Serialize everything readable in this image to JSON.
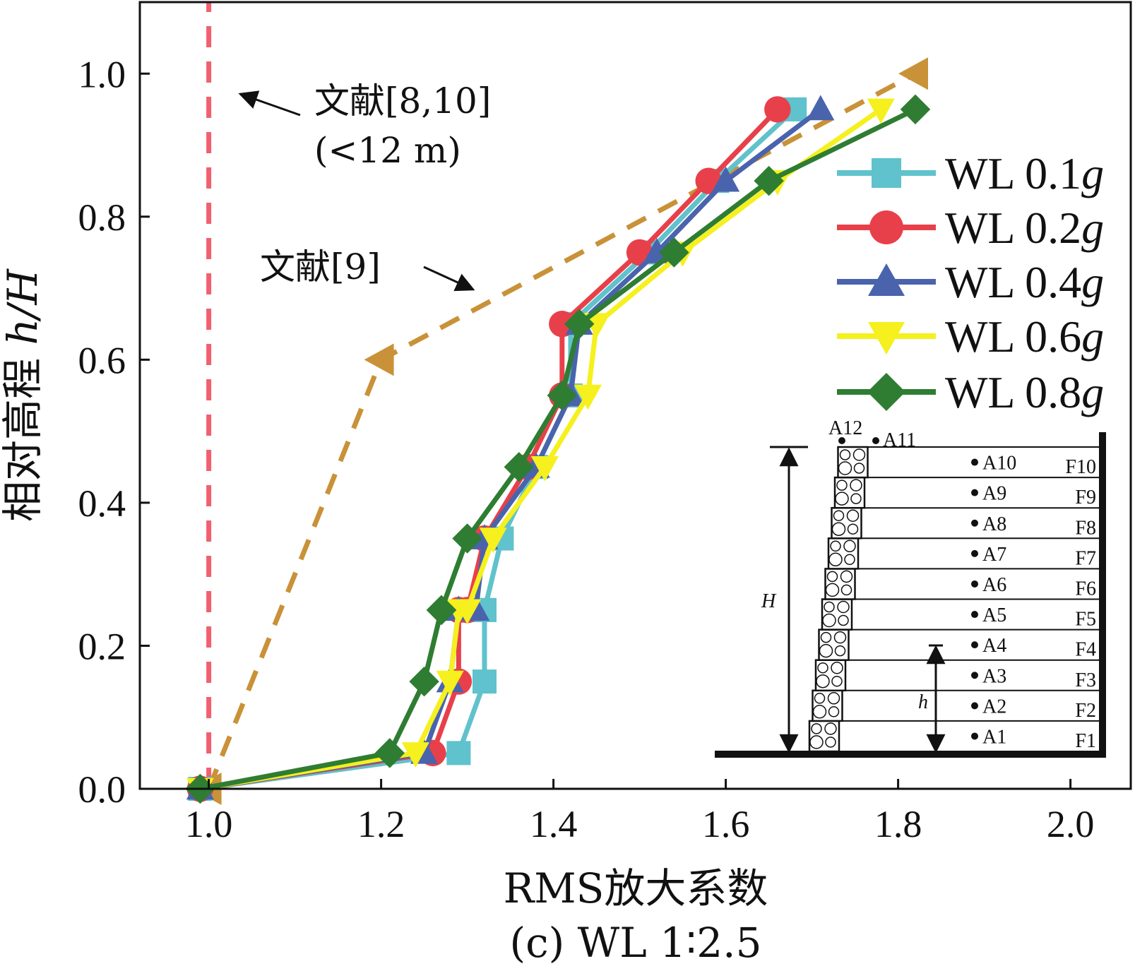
{
  "chart_data": {
    "type": "line",
    "title": "",
    "caption": "(c) WL 1∶2.5",
    "xlabel": "RMS放大系数",
    "ylabel": "相对高程 h/H",
    "ylabel_main": "相对高程 ",
    "ylabel_italic": "h/H",
    "xlim": [
      0.92,
      2.07
    ],
    "ylim": [
      0,
      1.1
    ],
    "x_ticks": [
      "1.0",
      "1.2",
      "1.4",
      "1.6",
      "1.8",
      "2.0"
    ],
    "x_tick_values": [
      1.0,
      1.2,
      1.4,
      1.6,
      1.8,
      2.0
    ],
    "y_ticks": [
      "0.0",
      "0.2",
      "0.4",
      "0.6",
      "0.8",
      "1.0"
    ],
    "y_tick_values": [
      0.0,
      0.2,
      0.4,
      0.6,
      0.8,
      1.0
    ],
    "grid": false,
    "legend_position": "right",
    "series": [
      {
        "name": "WL 0.1g",
        "name_main": "WL 0.1",
        "name_italic": "g",
        "color": "#5fc2cc",
        "marker": "square",
        "x": [
          0.99,
          1.29,
          1.32,
          1.32,
          1.32,
          1.34,
          1.38,
          1.42,
          1.42,
          1.51,
          1.59,
          1.68
        ],
        "y": [
          0.0,
          0.05,
          0.15,
          0.25,
          0.25,
          0.35,
          0.45,
          0.55,
          0.65,
          0.75,
          0.85,
          0.95
        ]
      },
      {
        "name": "WL 0.2g",
        "name_main": "WL 0.2",
        "name_italic": "g",
        "color": "#e8404a",
        "marker": "circle",
        "x": [
          0.99,
          1.26,
          1.29,
          1.29,
          1.3,
          1.32,
          1.37,
          1.41,
          1.41,
          1.5,
          1.58,
          1.66
        ],
        "y": [
          0.0,
          0.05,
          0.15,
          0.25,
          0.25,
          0.35,
          0.45,
          0.55,
          0.65,
          0.75,
          0.85,
          0.95
        ]
      },
      {
        "name": "WL 0.4g",
        "name_main": "WL 0.4",
        "name_italic": "g",
        "color": "#4a63ad",
        "marker": "triangle-up",
        "x": [
          0.99,
          1.25,
          1.28,
          1.29,
          1.31,
          1.32,
          1.38,
          1.42,
          1.43,
          1.52,
          1.6,
          1.71
        ],
        "y": [
          0.0,
          0.05,
          0.15,
          0.25,
          0.25,
          0.35,
          0.45,
          0.55,
          0.65,
          0.75,
          0.85,
          0.95
        ]
      },
      {
        "name": "WL 0.6g",
        "name_main": "WL 0.6",
        "name_italic": "g",
        "color": "#f5f01e",
        "marker": "triangle-down",
        "x": [
          0.99,
          1.24,
          1.28,
          1.29,
          1.3,
          1.33,
          1.39,
          1.44,
          1.45,
          1.55,
          1.66,
          1.78
        ],
        "y": [
          0.0,
          0.05,
          0.15,
          0.25,
          0.25,
          0.35,
          0.45,
          0.55,
          0.65,
          0.75,
          0.85,
          0.95
        ]
      },
      {
        "name": "WL 0.8g",
        "name_main": "WL 0.8",
        "name_italic": "g",
        "color": "#2e7d32",
        "marker": "diamond",
        "x": [
          0.99,
          1.21,
          1.25,
          1.27,
          1.27,
          1.3,
          1.36,
          1.41,
          1.43,
          1.54,
          1.65,
          1.82
        ],
        "y": [
          0.0,
          0.05,
          0.15,
          0.25,
          0.25,
          0.35,
          0.45,
          0.55,
          0.65,
          0.75,
          0.85,
          0.95
        ]
      }
    ],
    "reference_lines": [
      {
        "name": "文献[8,10] (<12 m)",
        "color": "#f06070",
        "style": "dashed",
        "x": [
          1.0,
          1.0
        ],
        "y": [
          0.0,
          1.1
        ]
      },
      {
        "name": "文献[9]",
        "color": "#c99238",
        "style": "dashed",
        "marker": "triangle-left",
        "x": [
          1.0,
          1.2,
          1.82
        ],
        "y": [
          0.0,
          0.6,
          1.0
        ]
      }
    ],
    "annotations": [
      {
        "id": "ref810",
        "text_line1": "文献[8,10]",
        "text_line2": "(<12 m)"
      },
      {
        "id": "ref9",
        "text": "文献[9]"
      }
    ],
    "inset": {
      "accelerometers": [
        "A1",
        "A2",
        "A3",
        "A4",
        "A5",
        "A6",
        "A7",
        "A8",
        "A9",
        "A10",
        "A11",
        "A12"
      ],
      "layers": [
        "F1",
        "F2",
        "F3",
        "F4",
        "F5",
        "F6",
        "F7",
        "F8",
        "F9",
        "F10"
      ],
      "label_H": "H",
      "label_h": "h"
    }
  }
}
